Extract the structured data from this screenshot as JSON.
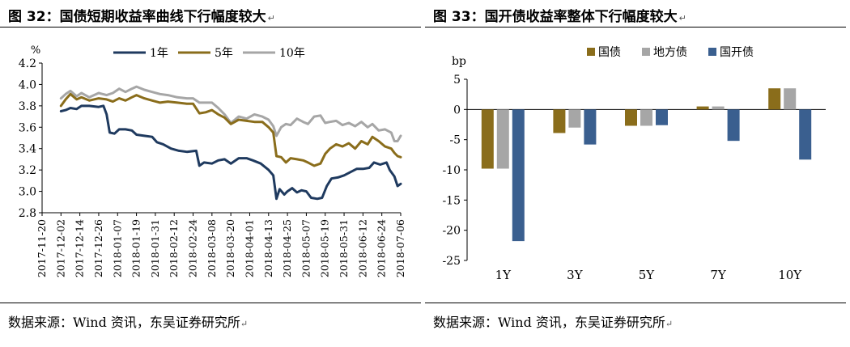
{
  "left": {
    "title": "图 32：国债短期收益率曲线下行幅度较大",
    "source": "数据来源：Wind 资讯，东吴证券研究所",
    "mark": "↵"
  },
  "right": {
    "title": "图 33：国开债收益率整体下行幅度较大",
    "source": "数据来源：Wind 资讯，东吴证券研究所",
    "mark": "↵"
  },
  "chart_data": [
    {
      "type": "line",
      "ylabel": "%",
      "ylim": [
        2.8,
        4.2
      ],
      "yticks": [
        "2.8",
        "3.0",
        "3.2",
        "3.4",
        "3.6",
        "3.8",
        "4.0",
        "4.2"
      ],
      "xticks": [
        "2017-11-20",
        "2017-12-02",
        "2017-12-14",
        "2017-12-26",
        "2018-01-07",
        "2018-01-19",
        "2018-01-31",
        "2018-02-12",
        "2018-02-24",
        "2018-03-08",
        "2018-03-20",
        "2018-04-01",
        "2018-04-13",
        "2018-04-25",
        "2018-05-07",
        "2018-05-19",
        "2018-05-31",
        "2018-06-12",
        "2018-06-24",
        "2018-07-06"
      ],
      "legend_position": "top",
      "series": [
        {
          "name": "1年",
          "color": "#1f3a5f",
          "values": [
            [
              "2017-12-02",
              3.75
            ],
            [
              "2017-12-05",
              3.76
            ],
            [
              "2017-12-08",
              3.78
            ],
            [
              "2017-12-12",
              3.77
            ],
            [
              "2017-12-15",
              3.8
            ],
            [
              "2017-12-20",
              3.8
            ],
            [
              "2017-12-26",
              3.79
            ],
            [
              "2017-12-29",
              3.8
            ],
            [
              "2017-12-31",
              3.72
            ],
            [
              "2018-01-02",
              3.55
            ],
            [
              "2018-01-05",
              3.54
            ],
            [
              "2018-01-08",
              3.58
            ],
            [
              "2018-01-12",
              3.58
            ],
            [
              "2018-01-16",
              3.57
            ],
            [
              "2018-01-19",
              3.53
            ],
            [
              "2018-01-24",
              3.52
            ],
            [
              "2018-01-29",
              3.51
            ],
            [
              "2018-02-01",
              3.46
            ],
            [
              "2018-02-05",
              3.44
            ],
            [
              "2018-02-10",
              3.4
            ],
            [
              "2018-02-15",
              3.38
            ],
            [
              "2018-02-20",
              3.37
            ],
            [
              "2018-02-26",
              3.38
            ],
            [
              "2018-02-28",
              3.24
            ],
            [
              "2018-03-03",
              3.27
            ],
            [
              "2018-03-08",
              3.26
            ],
            [
              "2018-03-12",
              3.29
            ],
            [
              "2018-03-16",
              3.3
            ],
            [
              "2018-03-20",
              3.26
            ],
            [
              "2018-03-25",
              3.31
            ],
            [
              "2018-03-30",
              3.31
            ],
            [
              "2018-04-03",
              3.29
            ],
            [
              "2018-04-08",
              3.26
            ],
            [
              "2018-04-13",
              3.2
            ],
            [
              "2018-04-16",
              3.15
            ],
            [
              "2018-04-18",
              2.93
            ],
            [
              "2018-04-20",
              3.02
            ],
            [
              "2018-04-23",
              2.97
            ],
            [
              "2018-04-25",
              3.0
            ],
            [
              "2018-04-28",
              3.03
            ],
            [
              "2018-05-01",
              2.99
            ],
            [
              "2018-05-04",
              3.01
            ],
            [
              "2018-05-07",
              3.0
            ],
            [
              "2018-05-10",
              2.94
            ],
            [
              "2018-05-14",
              2.93
            ],
            [
              "2018-05-17",
              2.94
            ],
            [
              "2018-05-20",
              3.05
            ],
            [
              "2018-05-23",
              3.12
            ],
            [
              "2018-05-27",
              3.13
            ],
            [
              "2018-05-31",
              3.15
            ],
            [
              "2018-06-04",
              3.18
            ],
            [
              "2018-06-08",
              3.21
            ],
            [
              "2018-06-12",
              3.21
            ],
            [
              "2018-06-16",
              3.22
            ],
            [
              "2018-06-19",
              3.27
            ],
            [
              "2018-06-23",
              3.25
            ],
            [
              "2018-06-27",
              3.27
            ],
            [
              "2018-06-29",
              3.2
            ],
            [
              "2018-07-02",
              3.14
            ],
            [
              "2018-07-04",
              3.05
            ],
            [
              "2018-07-06",
              3.07
            ]
          ]
        },
        {
          "name": "5年",
          "color": "#8a6d1b",
          "values": [
            [
              "2017-12-02",
              3.8
            ],
            [
              "2017-12-05",
              3.86
            ],
            [
              "2017-12-08",
              3.91
            ],
            [
              "2017-12-12",
              3.86
            ],
            [
              "2017-12-15",
              3.88
            ],
            [
              "2017-12-20",
              3.85
            ],
            [
              "2017-12-26",
              3.87
            ],
            [
              "2017-12-31",
              3.86
            ],
            [
              "2018-01-04",
              3.84
            ],
            [
              "2018-01-08",
              3.87
            ],
            [
              "2018-01-12",
              3.85
            ],
            [
              "2018-01-16",
              3.88
            ],
            [
              "2018-01-19",
              3.9
            ],
            [
              "2018-01-24",
              3.87
            ],
            [
              "2018-01-29",
              3.85
            ],
            [
              "2018-02-03",
              3.83
            ],
            [
              "2018-02-08",
              3.84
            ],
            [
              "2018-02-14",
              3.83
            ],
            [
              "2018-02-20",
              3.82
            ],
            [
              "2018-02-24",
              3.82
            ],
            [
              "2018-02-28",
              3.73
            ],
            [
              "2018-03-04",
              3.74
            ],
            [
              "2018-03-08",
              3.76
            ],
            [
              "2018-03-12",
              3.72
            ],
            [
              "2018-03-16",
              3.69
            ],
            [
              "2018-03-20",
              3.63
            ],
            [
              "2018-03-25",
              3.67
            ],
            [
              "2018-03-30",
              3.66
            ],
            [
              "2018-04-04",
              3.65
            ],
            [
              "2018-04-09",
              3.65
            ],
            [
              "2018-04-13",
              3.6
            ],
            [
              "2018-04-16",
              3.55
            ],
            [
              "2018-04-18",
              3.33
            ],
            [
              "2018-04-21",
              3.32
            ],
            [
              "2018-04-24",
              3.27
            ],
            [
              "2018-04-27",
              3.31
            ],
            [
              "2018-05-01",
              3.3
            ],
            [
              "2018-05-05",
              3.29
            ],
            [
              "2018-05-08",
              3.27
            ],
            [
              "2018-05-12",
              3.24
            ],
            [
              "2018-05-16",
              3.26
            ],
            [
              "2018-05-19",
              3.35
            ],
            [
              "2018-05-22",
              3.4
            ],
            [
              "2018-05-26",
              3.44
            ],
            [
              "2018-05-30",
              3.42
            ],
            [
              "2018-06-03",
              3.45
            ],
            [
              "2018-06-07",
              3.4
            ],
            [
              "2018-06-11",
              3.47
            ],
            [
              "2018-06-15",
              3.44
            ],
            [
              "2018-06-18",
              3.51
            ],
            [
              "2018-06-22",
              3.47
            ],
            [
              "2018-06-26",
              3.42
            ],
            [
              "2018-06-30",
              3.4
            ],
            [
              "2018-07-02",
              3.36
            ],
            [
              "2018-07-04",
              3.33
            ],
            [
              "2018-07-06",
              3.32
            ]
          ]
        },
        {
          "name": "10年",
          "color": "#a6a6a6",
          "values": [
            [
              "2017-12-02",
              3.87
            ],
            [
              "2017-12-05",
              3.91
            ],
            [
              "2017-12-08",
              3.94
            ],
            [
              "2017-12-12",
              3.89
            ],
            [
              "2017-12-15",
              3.92
            ],
            [
              "2017-12-20",
              3.88
            ],
            [
              "2017-12-26",
              3.92
            ],
            [
              "2017-12-31",
              3.9
            ],
            [
              "2018-01-04",
              3.92
            ],
            [
              "2018-01-08",
              3.96
            ],
            [
              "2018-01-12",
              3.93
            ],
            [
              "2018-01-16",
              3.96
            ],
            [
              "2018-01-19",
              3.98
            ],
            [
              "2018-01-24",
              3.95
            ],
            [
              "2018-01-29",
              3.93
            ],
            [
              "2018-02-03",
              3.91
            ],
            [
              "2018-02-08",
              3.9
            ],
            [
              "2018-02-14",
              3.88
            ],
            [
              "2018-02-20",
              3.87
            ],
            [
              "2018-02-24",
              3.87
            ],
            [
              "2018-02-28",
              3.83
            ],
            [
              "2018-03-04",
              3.83
            ],
            [
              "2018-03-08",
              3.83
            ],
            [
              "2018-03-12",
              3.78
            ],
            [
              "2018-03-16",
              3.72
            ],
            [
              "2018-03-20",
              3.64
            ],
            [
              "2018-03-25",
              3.7
            ],
            [
              "2018-03-30",
              3.68
            ],
            [
              "2018-04-04",
              3.72
            ],
            [
              "2018-04-09",
              3.7
            ],
            [
              "2018-04-13",
              3.67
            ],
            [
              "2018-04-16",
              3.61
            ],
            [
              "2018-04-18",
              3.52
            ],
            [
              "2018-04-21",
              3.6
            ],
            [
              "2018-04-24",
              3.63
            ],
            [
              "2018-04-27",
              3.62
            ],
            [
              "2018-05-01",
              3.68
            ],
            [
              "2018-05-05",
              3.65
            ],
            [
              "2018-05-08",
              3.63
            ],
            [
              "2018-05-12",
              3.7
            ],
            [
              "2018-05-16",
              3.71
            ],
            [
              "2018-05-19",
              3.64
            ],
            [
              "2018-05-22",
              3.65
            ],
            [
              "2018-05-26",
              3.66
            ],
            [
              "2018-05-30",
              3.62
            ],
            [
              "2018-06-03",
              3.64
            ],
            [
              "2018-06-07",
              3.61
            ],
            [
              "2018-06-11",
              3.65
            ],
            [
              "2018-06-15",
              3.6
            ],
            [
              "2018-06-18",
              3.63
            ],
            [
              "2018-06-22",
              3.57
            ],
            [
              "2018-06-26",
              3.58
            ],
            [
              "2018-06-30",
              3.55
            ],
            [
              "2018-07-02",
              3.47
            ],
            [
              "2018-07-04",
              3.47
            ],
            [
              "2018-07-06",
              3.52
            ]
          ]
        }
      ]
    },
    {
      "type": "bar",
      "ylabel": "bp",
      "ylim": [
        -25,
        5
      ],
      "yticks": [
        "5",
        "0",
        "-5",
        "-10",
        "-15",
        "-20",
        "-25"
      ],
      "categories": [
        "1Y",
        "3Y",
        "5Y",
        "7Y",
        "10Y"
      ],
      "legend_position": "top",
      "series": [
        {
          "name": "国债",
          "color": "#8a6d1b",
          "values": [
            -9.8,
            -3.9,
            -2.7,
            0.5,
            3.5
          ]
        },
        {
          "name": "地方债",
          "color": "#a6a6a6",
          "values": [
            -9.8,
            -3.0,
            -2.7,
            0.5,
            3.5
          ]
        },
        {
          "name": "国开债",
          "color": "#3a5f8f",
          "values": [
            -21.8,
            -5.8,
            -2.6,
            -5.2,
            -8.3
          ]
        }
      ]
    }
  ]
}
